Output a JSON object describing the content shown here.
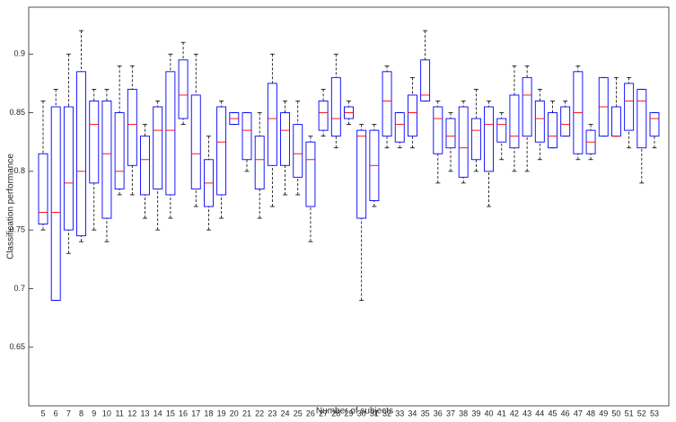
{
  "chart_data": {
    "type": "box",
    "x_label": "Number of subjects",
    "y_label": "Classification performance",
    "categories": [
      "5",
      "6",
      "7",
      "8",
      "9",
      "10",
      "11",
      "12",
      "13",
      "14",
      "15",
      "16",
      "17",
      "18",
      "19",
      "20",
      "21",
      "22",
      "23",
      "24",
      "25",
      "26",
      "27",
      "28",
      "29",
      "30",
      "31",
      "32",
      "33",
      "34",
      "35",
      "36",
      "37",
      "38",
      "39",
      "40",
      "41",
      "42",
      "43",
      "44",
      "45",
      "46",
      "47",
      "48",
      "49",
      "50",
      "51",
      "52",
      "53"
    ],
    "whisker_low": [
      0.75,
      0.69,
      0.73,
      0.74,
      0.75,
      0.74,
      0.78,
      0.78,
      0.76,
      0.75,
      0.76,
      0.84,
      0.77,
      0.75,
      0.76,
      0.84,
      0.8,
      0.76,
      0.77,
      0.78,
      0.78,
      0.74,
      0.83,
      0.82,
      0.84,
      0.69,
      0.77,
      0.82,
      0.82,
      0.82,
      0.86,
      0.79,
      0.8,
      0.79,
      0.8,
      0.77,
      0.81,
      0.8,
      0.8,
      0.81,
      0.82,
      0.83,
      0.81,
      0.81,
      0.83,
      0.83,
      0.82,
      0.79,
      0.82
    ],
    "q1": [
      0.755,
      0.69,
      0.75,
      0.745,
      0.79,
      0.76,
      0.785,
      0.805,
      0.78,
      0.785,
      0.78,
      0.845,
      0.785,
      0.77,
      0.78,
      0.84,
      0.81,
      0.785,
      0.805,
      0.805,
      0.795,
      0.77,
      0.835,
      0.83,
      0.845,
      0.76,
      0.775,
      0.83,
      0.825,
      0.83,
      0.86,
      0.815,
      0.82,
      0.795,
      0.81,
      0.8,
      0.825,
      0.82,
      0.83,
      0.825,
      0.82,
      0.83,
      0.815,
      0.815,
      0.83,
      0.83,
      0.835,
      0.82,
      0.83
    ],
    "median": [
      0.765,
      0.765,
      0.79,
      0.8,
      0.84,
      0.815,
      0.8,
      0.84,
      0.81,
      0.835,
      0.835,
      0.865,
      0.815,
      0.79,
      0.825,
      0.845,
      0.835,
      0.81,
      0.845,
      0.835,
      0.815,
      0.81,
      0.85,
      0.845,
      0.85,
      0.83,
      0.805,
      0.86,
      0.84,
      0.85,
      0.865,
      0.845,
      0.83,
      0.82,
      0.835,
      0.84,
      0.84,
      0.83,
      0.865,
      0.845,
      0.83,
      0.84,
      0.85,
      0.825,
      0.855,
      0.83,
      0.86,
      0.86,
      0.845
    ],
    "q3": [
      0.815,
      0.855,
      0.855,
      0.885,
      0.86,
      0.86,
      0.85,
      0.87,
      0.83,
      0.855,
      0.885,
      0.895,
      0.865,
      0.81,
      0.855,
      0.85,
      0.85,
      0.83,
      0.875,
      0.85,
      0.84,
      0.825,
      0.86,
      0.88,
      0.855,
      0.835,
      0.835,
      0.885,
      0.85,
      0.865,
      0.895,
      0.855,
      0.845,
      0.855,
      0.845,
      0.855,
      0.845,
      0.865,
      0.88,
      0.86,
      0.85,
      0.855,
      0.885,
      0.835,
      0.88,
      0.855,
      0.875,
      0.87,
      0.85
    ],
    "whisker_high": [
      0.86,
      0.87,
      0.9,
      0.92,
      0.87,
      0.87,
      0.89,
      0.89,
      0.84,
      0.86,
      0.9,
      0.91,
      0.9,
      0.83,
      0.86,
      0.85,
      0.85,
      0.85,
      0.9,
      0.86,
      0.86,
      0.83,
      0.87,
      0.9,
      0.86,
      0.84,
      0.84,
      0.89,
      0.85,
      0.88,
      0.92,
      0.86,
      0.85,
      0.86,
      0.87,
      0.86,
      0.85,
      0.89,
      0.89,
      0.87,
      0.86,
      0.86,
      0.89,
      0.84,
      0.88,
      0.88,
      0.88,
      0.87,
      0.85
    ],
    "box_color": "#0000ff",
    "median_color": "#ff0000",
    "whisker_color": "#000000",
    "ylim": [
      0.6,
      0.94
    ],
    "yticks": [
      0.65,
      0.7,
      0.75,
      0.8,
      0.85,
      0.9
    ]
  }
}
